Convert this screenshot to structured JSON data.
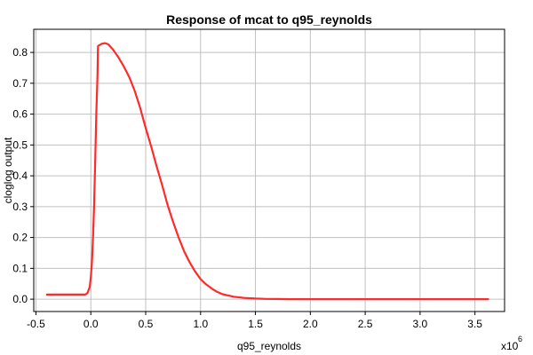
{
  "chart_data": {
    "type": "line",
    "title": "Response of mcat to q95_reynolds",
    "xlabel": "q95_reynolds",
    "ylabel": "cloglog output",
    "x_scale_label": "x10",
    "x_scale_exponent": "6",
    "xlim": [
      -0.52,
      3.77
    ],
    "ylim": [
      -0.04,
      0.875
    ],
    "xticks": [
      -0.5,
      0.0,
      0.5,
      1.0,
      1.5,
      2.0,
      2.5,
      3.0,
      3.5
    ],
    "xtick_labels": [
      "-0.5",
      "0.0",
      "0.5",
      "1.0",
      "1.5",
      "2.0",
      "2.5",
      "3.0",
      "3.5"
    ],
    "yticks": [
      0.0,
      0.1,
      0.2,
      0.3,
      0.4,
      0.5,
      0.6,
      0.7,
      0.8
    ],
    "ytick_labels": [
      "0.0",
      "0.1",
      "0.2",
      "0.3",
      "0.4",
      "0.5",
      "0.6",
      "0.7",
      "0.8"
    ],
    "grid": true,
    "series": [
      {
        "color": "#ff2a2a",
        "x": [
          -0.4,
          -0.3,
          -0.2,
          -0.1,
          -0.05,
          -0.03,
          -0.01,
          0.0,
          0.01,
          0.02,
          0.03,
          0.04,
          0.05,
          0.06,
          0.065,
          0.07,
          0.1,
          0.13,
          0.16,
          0.2,
          0.25,
          0.3,
          0.35,
          0.4,
          0.45,
          0.5,
          0.55,
          0.6,
          0.65,
          0.7,
          0.75,
          0.8,
          0.85,
          0.9,
          0.95,
          1.0,
          1.05,
          1.1,
          1.15,
          1.2,
          1.3,
          1.4,
          1.5,
          1.6,
          1.7,
          1.75,
          1.8,
          2.0,
          2.5,
          3.0,
          3.5,
          3.62
        ],
        "y": [
          0.015,
          0.015,
          0.015,
          0.015,
          0.015,
          0.02,
          0.04,
          0.07,
          0.12,
          0.2,
          0.3,
          0.45,
          0.6,
          0.72,
          0.82,
          0.822,
          0.828,
          0.83,
          0.826,
          0.81,
          0.785,
          0.755,
          0.72,
          0.675,
          0.62,
          0.555,
          0.495,
          0.43,
          0.37,
          0.305,
          0.25,
          0.2,
          0.155,
          0.12,
          0.09,
          0.065,
          0.048,
          0.035,
          0.024,
          0.016,
          0.008,
          0.004,
          0.002,
          0.001,
          0.0005,
          0.0004,
          0.0,
          0.0,
          0.0,
          0.0,
          0.0,
          0.0
        ]
      }
    ]
  }
}
